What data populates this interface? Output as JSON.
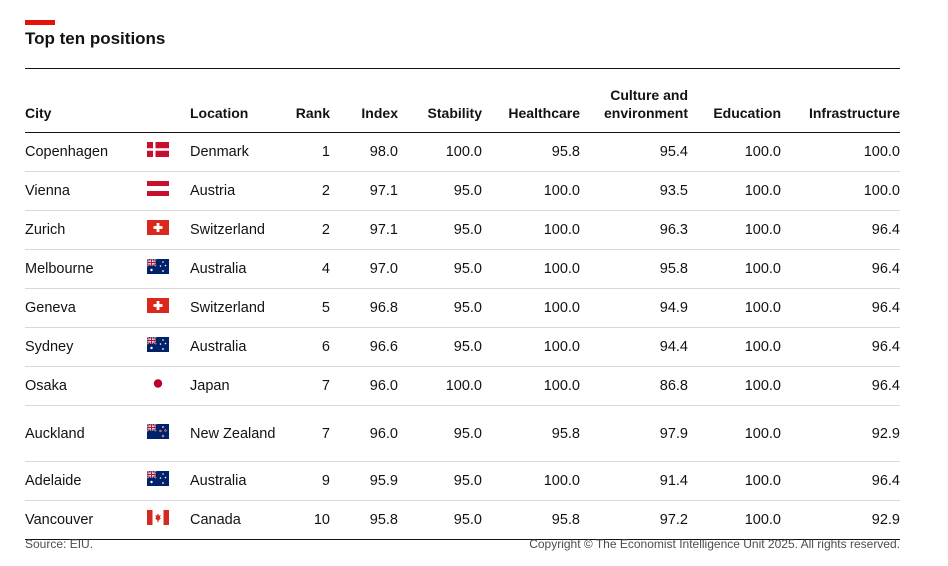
{
  "accent_color": "#e3120b",
  "title": "Top ten positions",
  "source": "Source: EIU.",
  "copyright": "Copyright © The Economist Intelligence Unit 2025. All rights reserved.",
  "chart_data": {
    "type": "table",
    "title": "Top ten positions",
    "columns": [
      "City",
      "Location",
      "Rank",
      "Index",
      "Stability",
      "Healthcare",
      "Culture and environment",
      "Education",
      "Infrastructure"
    ],
    "rows": [
      {
        "city": "Copenhagen",
        "flag": "denmark-flag-icon",
        "location": "Denmark",
        "rank": "1",
        "index": "98.0",
        "stability": "100.0",
        "healthcare": "95.8",
        "culture": "95.4",
        "education": "100.0",
        "infrastructure": "100.0"
      },
      {
        "city": "Vienna",
        "flag": "austria-flag-icon",
        "location": "Austria",
        "rank": "2",
        "index": "97.1",
        "stability": "95.0",
        "healthcare": "100.0",
        "culture": "93.5",
        "education": "100.0",
        "infrastructure": "100.0"
      },
      {
        "city": "Zurich",
        "flag": "switzerland-flag-icon",
        "location": "Switzerland",
        "rank": "2",
        "index": "97.1",
        "stability": "95.0",
        "healthcare": "100.0",
        "culture": "96.3",
        "education": "100.0",
        "infrastructure": "96.4"
      },
      {
        "city": "Melbourne",
        "flag": "australia-flag-icon",
        "location": "Australia",
        "rank": "4",
        "index": "97.0",
        "stability": "95.0",
        "healthcare": "100.0",
        "culture": "95.8",
        "education": "100.0",
        "infrastructure": "96.4"
      },
      {
        "city": "Geneva",
        "flag": "switzerland-flag-icon",
        "location": "Switzerland",
        "rank": "5",
        "index": "96.8",
        "stability": "95.0",
        "healthcare": "100.0",
        "culture": "94.9",
        "education": "100.0",
        "infrastructure": "96.4"
      },
      {
        "city": "Sydney",
        "flag": "australia-flag-icon",
        "location": "Australia",
        "rank": "6",
        "index": "96.6",
        "stability": "95.0",
        "healthcare": "100.0",
        "culture": "94.4",
        "education": "100.0",
        "infrastructure": "96.4"
      },
      {
        "city": "Osaka",
        "flag": "japan-flag-icon",
        "location": "Japan",
        "rank": "7",
        "index": "96.0",
        "stability": "100.0",
        "healthcare": "100.0",
        "culture": "86.8",
        "education": "100.0",
        "infrastructure": "96.4"
      },
      {
        "city": "Auckland",
        "flag": "new-zealand-flag-icon",
        "location": "New Zealand",
        "rank": "7",
        "index": "96.0",
        "stability": "95.0",
        "healthcare": "95.8",
        "culture": "97.9",
        "education": "100.0",
        "infrastructure": "92.9"
      },
      {
        "city": "Adelaide",
        "flag": "australia-flag-icon",
        "location": "Australia",
        "rank": "9",
        "index": "95.9",
        "stability": "95.0",
        "healthcare": "100.0",
        "culture": "91.4",
        "education": "100.0",
        "infrastructure": "96.4"
      },
      {
        "city": "Vancouver",
        "flag": "canada-flag-icon",
        "location": "Canada",
        "rank": "10",
        "index": "95.8",
        "stability": "95.0",
        "healthcare": "95.8",
        "culture": "97.2",
        "education": "100.0",
        "infrastructure": "92.9"
      }
    ]
  }
}
